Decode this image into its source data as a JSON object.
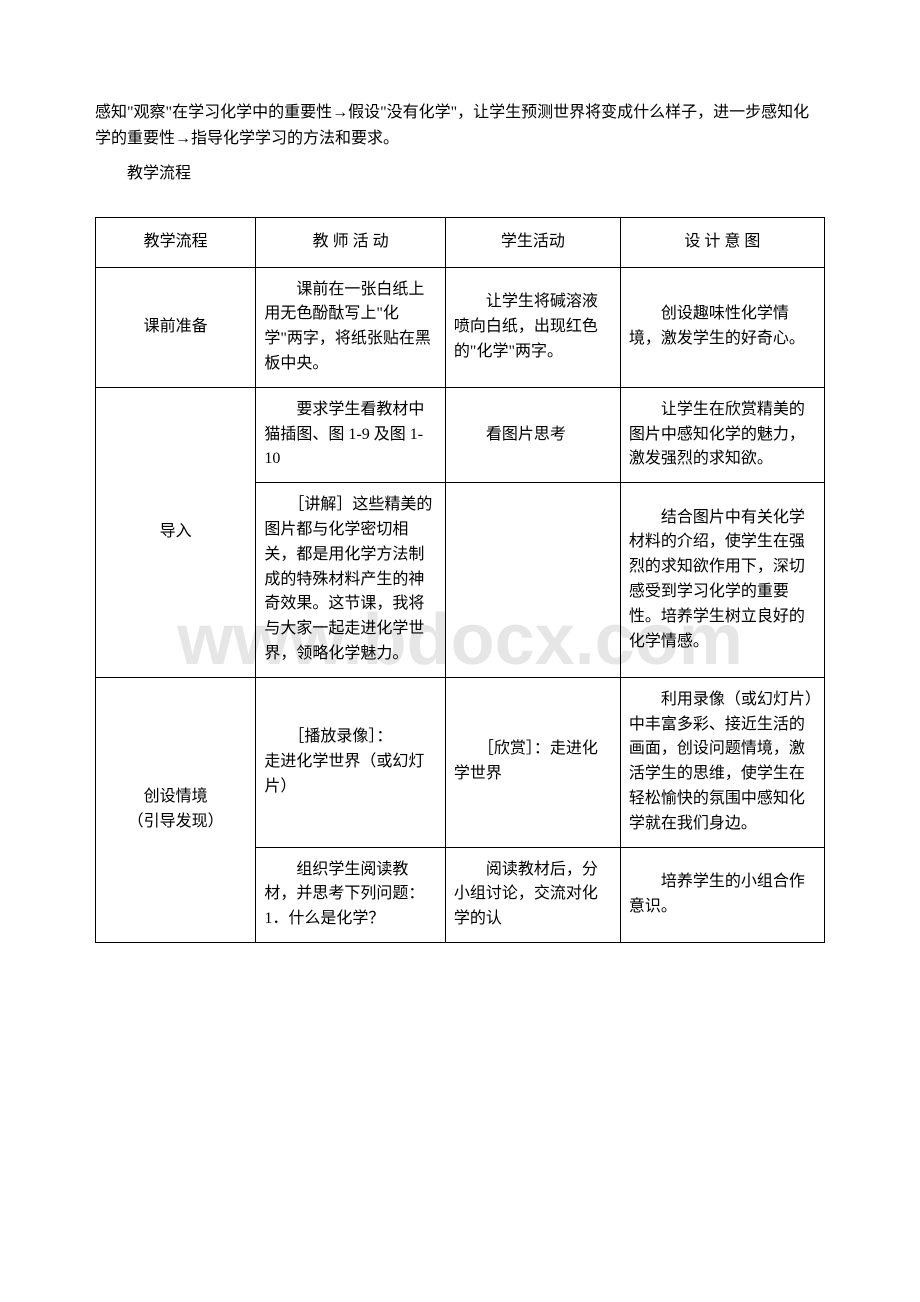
{
  "intro": "感知\"观察\"在学习化学中的重要性→假设\"没有化学\"，让学生预测世界将变成什么样子，进一步感知化学的重要性→指导化学学习的方法和要求。",
  "section_title": "教学流程",
  "watermark": "www.bdocx.com",
  "table": {
    "headers": {
      "col1": "教学流程",
      "col2": "教 师 活 动",
      "col3": "学生活动",
      "col4": "设 计 意 图"
    },
    "rows": [
      {
        "col1": "课前准备",
        "col2": "　　课前在一张白纸上用无色酚酞写上\"化学\"两字，将纸张贴在黑板中央。",
        "col3": "　　让学生将碱溶液喷向白纸，出现红色的\"化学\"两字。",
        "col4": "　　创设趣味性化学情境，激发学生的好奇心。"
      },
      {
        "col1": "导入",
        "rowspan1": 2,
        "sub": [
          {
            "col2": "　　要求学生看教材中猫插图、图 1-9 及图 1-10",
            "col3": "　　看图片思考",
            "col4": "　　让学生在欣赏精美的图片中感知化学的魅力，激发强烈的求知欲。"
          },
          {
            "col2": "　　［讲解］这些精美的图片都与化学密切相关，都是用化学方法制成的特殊材料产生的神奇效果。这节课，我将与大家一起走进化学世界，领略化学魅力。",
            "col3": "",
            "col4": "　　结合图片中有关化学材料的介绍，使学生在强烈的求知欲作用下，深切感受到学习化学的重要性。培养学生树立良好的化学情感。"
          }
        ]
      },
      {
        "col1": "创设情境\n（引导发现）",
        "rowspan1": 2,
        "sub": [
          {
            "col2": "　　［播放录像］：\n走进化学世界（或幻灯片）",
            "col3": "　　［欣赏］：走进化学世界",
            "col4": "　　利用录像（或幻灯片）中丰富多彩、接近生活的画面，创设问题情境，激活学生的思维，使学生在轻松愉快的氛围中感知化学就在我们身边。"
          },
          {
            "col2": "　　组织学生阅读教材，并思考下列问题：\n1．什么是化学？",
            "col3": "　　阅读教材后，分小组讨论，交流对化学的认",
            "col4": "　　培养学生的小组合作意识。"
          }
        ]
      }
    ]
  }
}
